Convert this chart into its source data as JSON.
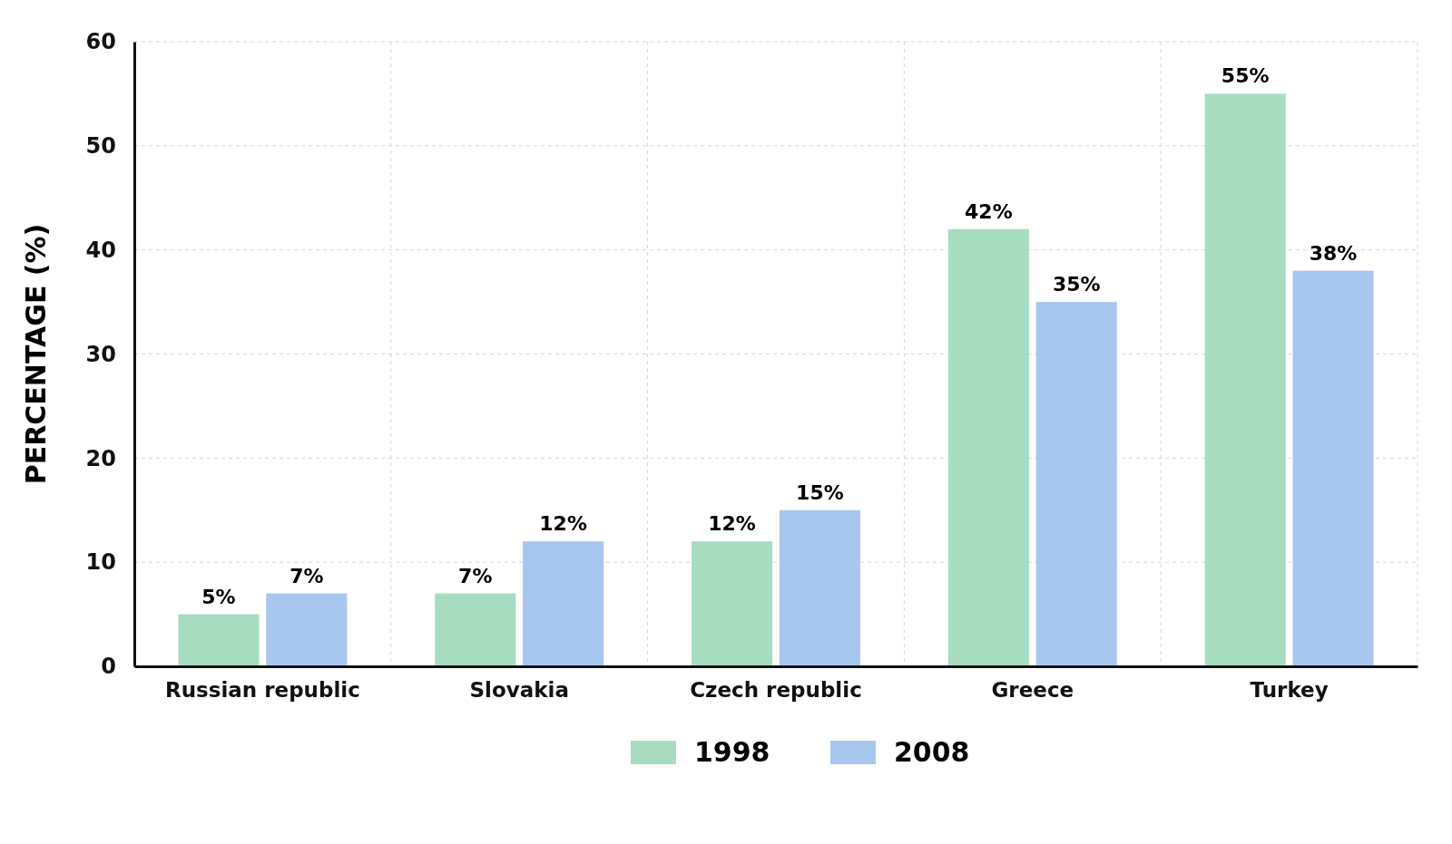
{
  "chart_data": {
    "type": "bar",
    "ylabel": "PERCENTAGE (%)",
    "categories": [
      "Russian republic",
      "Slovakia",
      "Czech republic",
      "Greece",
      "Turkey"
    ],
    "series": [
      {
        "name": "1998",
        "color": "#a8dcc0",
        "values": [
          5,
          7,
          12,
          42,
          55
        ],
        "value_labels": [
          "5%",
          "7%",
          "12%",
          "42%",
          "55%"
        ]
      },
      {
        "name": "2008",
        "color": "#a7c7ef",
        "values": [
          7,
          12,
          15,
          35,
          38
        ],
        "value_labels": [
          "7%",
          "12%",
          "15%",
          "35%",
          "38%"
        ]
      }
    ],
    "ylim": [
      0,
      60
    ],
    "yticks": [
      0,
      10,
      20,
      30,
      40,
      50,
      60
    ],
    "grid": true,
    "legend": "bottom"
  }
}
